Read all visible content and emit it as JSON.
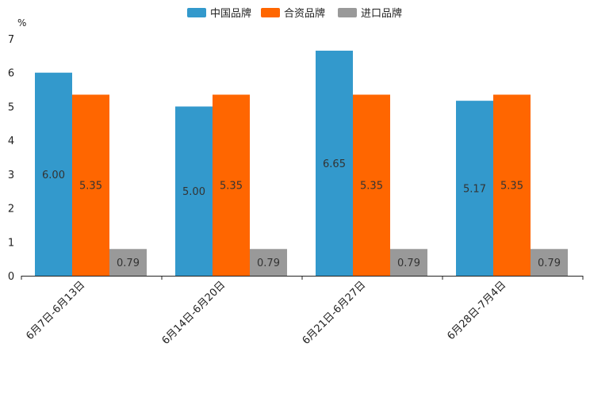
{
  "chart_data": {
    "type": "bar",
    "title": "",
    "xlabel": "",
    "ylabel": "%",
    "ylim": [
      0,
      7
    ],
    "yticks": [
      0,
      1,
      2,
      3,
      4,
      5,
      6,
      7
    ],
    "grid": false,
    "legend_position": "top-center",
    "categories": [
      "6月7日-6月13日",
      "6月14日-6月20日",
      "6月21日-6月27日",
      "6月28日-7月4日"
    ],
    "series": [
      {
        "name": "中国品牌",
        "color": "#3399cc",
        "values": [
          6.0,
          5.0,
          6.65,
          5.17
        ],
        "labels": [
          "6.00",
          "5.00",
          "6.65",
          "5.17"
        ]
      },
      {
        "name": "合资品牌",
        "color": "#ff6600",
        "values": [
          5.35,
          5.35,
          5.35,
          5.35
        ],
        "labels": [
          "5.35",
          "5.35",
          "5.35",
          "5.35"
        ]
      },
      {
        "name": "进口品牌",
        "color": "#999999",
        "values": [
          0.79,
          0.79,
          0.79,
          0.79
        ],
        "labels": [
          "0.79",
          "0.79",
          "0.79",
          "0.79"
        ]
      }
    ]
  }
}
